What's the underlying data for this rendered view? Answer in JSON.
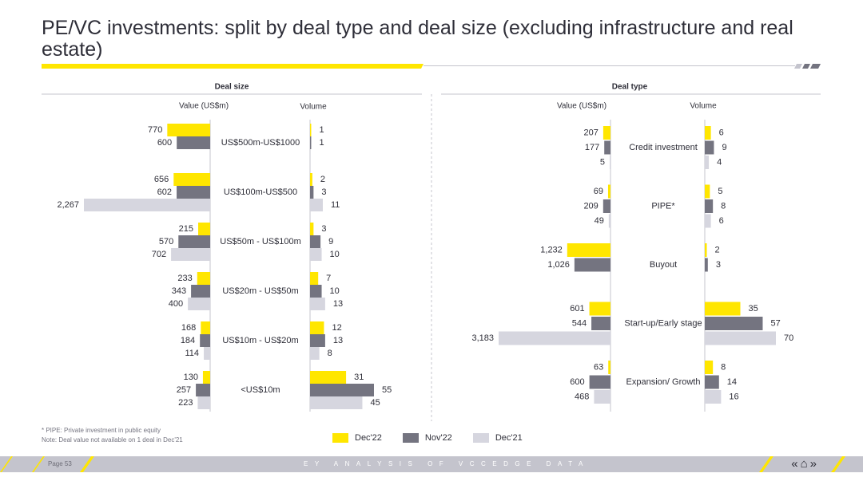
{
  "page": {
    "title": "PE/VC investments: split by deal type and deal size (excluding infrastructure and real estate)",
    "footnotes": [
      "* PIPE: Private investment in public equity",
      "Note: Deal value not available on 1 deal in Dec'21"
    ],
    "page_number": "Page 53",
    "footer_text": "EY ANALYSIS OF VCCEDGE DATA",
    "nav": {
      "back": "«",
      "home": "⌂",
      "forward": "»"
    }
  },
  "colors": {
    "Dec'22": "#ffe600",
    "Nov'22": "#747480",
    "Dec'21": "#d6d6df"
  },
  "legend": [
    "Dec'22",
    "Nov'22",
    "Dec'21"
  ],
  "chart_data": [
    {
      "type": "bar",
      "title": "Deal size",
      "value_label": "Value (US$m)",
      "volume_label": "Volume",
      "categories": [
        "US$500m-US$1000",
        "US$100m-US$500",
        "US$50m - US$100m",
        "US$20m - US$50m",
        "US$10m - US$20m",
        "<US$10m"
      ],
      "series_names": [
        "Dec'22",
        "Nov'22",
        "Dec'21"
      ],
      "value": [
        [
          770,
          600,
          null
        ],
        [
          656,
          602,
          2267
        ],
        [
          215,
          570,
          702
        ],
        [
          233,
          343,
          400
        ],
        [
          168,
          184,
          114
        ],
        [
          130,
          257,
          223
        ]
      ],
      "value_labels": [
        [
          "770",
          "600",
          ""
        ],
        [
          "656",
          "602",
          "2,267"
        ],
        [
          "215",
          "570",
          "702"
        ],
        [
          "233",
          "343",
          "400"
        ],
        [
          "168",
          "184",
          "114"
        ],
        [
          "130",
          "257",
          "223"
        ]
      ],
      "volume": [
        [
          1,
          1,
          null
        ],
        [
          2,
          3,
          11
        ],
        [
          3,
          9,
          10
        ],
        [
          7,
          10,
          13
        ],
        [
          12,
          13,
          8
        ],
        [
          31,
          55,
          45
        ]
      ],
      "volume_labels": [
        [
          "1",
          "1",
          ""
        ],
        [
          "2",
          "3",
          "11"
        ],
        [
          "3",
          "9",
          "10"
        ],
        [
          "7",
          "10",
          "13"
        ],
        [
          "12",
          "13",
          "8"
        ],
        [
          "31",
          "55",
          "45"
        ]
      ]
    },
    {
      "type": "bar",
      "title": "Deal type",
      "value_label": "Value (US$m)",
      "volume_label": "Volume",
      "categories": [
        "Credit investment",
        "PIPE*",
        "Buyout",
        "Start-up/Early stage",
        "Expansion/ Growth"
      ],
      "series_names": [
        "Dec'22",
        "Nov'22",
        "Dec'21"
      ],
      "value": [
        [
          207,
          177,
          5
        ],
        [
          69,
          209,
          49
        ],
        [
          1232,
          1026,
          null
        ],
        [
          601,
          544,
          3183
        ],
        [
          63,
          600,
          468
        ]
      ],
      "value_labels": [
        [
          "207",
          "177",
          "5"
        ],
        [
          "69",
          "209",
          "49"
        ],
        [
          "1,232",
          "1,026",
          ""
        ],
        [
          "601",
          "544",
          "3,183"
        ],
        [
          "63",
          "600",
          "468"
        ]
      ],
      "volume": [
        [
          6,
          9,
          4
        ],
        [
          5,
          8,
          6
        ],
        [
          2,
          3,
          null
        ],
        [
          35,
          57,
          70
        ],
        [
          8,
          14,
          16
        ]
      ],
      "volume_labels": [
        [
          "6",
          "9",
          "4"
        ],
        [
          "5",
          "8",
          "6"
        ],
        [
          "2",
          "3",
          ""
        ],
        [
          "35",
          "57",
          "70"
        ],
        [
          "8",
          "14",
          "16"
        ]
      ]
    }
  ]
}
